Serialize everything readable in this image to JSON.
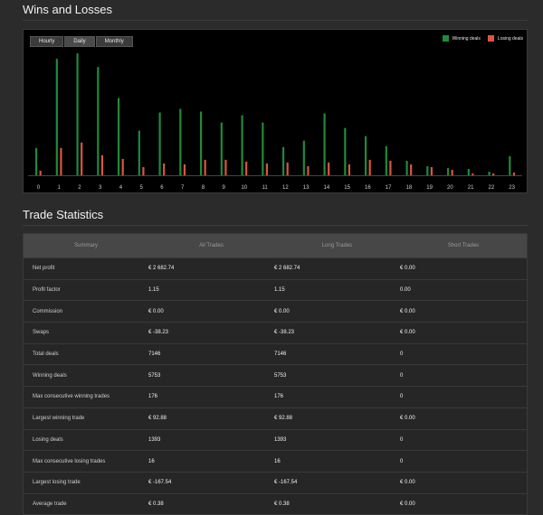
{
  "wins_losses": {
    "title": "Wins and Losses",
    "tabs": [
      "Hourly",
      "Daily",
      "Monthly"
    ],
    "legend": [
      {
        "label": "Winning deals",
        "color": "#1f8a3b"
      },
      {
        "label": "Losing deals",
        "color": "#d9563f"
      }
    ]
  },
  "chart_data": {
    "type": "bar",
    "categories": [
      "0",
      "1",
      "2",
      "3",
      "4",
      "5",
      "6",
      "7",
      "8",
      "9",
      "10",
      "11",
      "12",
      "13",
      "14",
      "15",
      "16",
      "17",
      "18",
      "19",
      "20",
      "21",
      "22",
      "23"
    ],
    "series": [
      {
        "name": "Winning deals",
        "color": "#1f8a3b",
        "values": [
          30,
          128,
          134,
          119,
          85,
          49,
          69,
          73,
          70,
          58,
          66,
          58,
          31,
          38,
          68,
          52,
          43,
          32,
          16,
          10,
          8,
          7,
          4,
          21
        ]
      },
      {
        "name": "Losing deals",
        "color": "#d9563f",
        "values": [
          5,
          30,
          36,
          22,
          18,
          9,
          13,
          12,
          17,
          17,
          15,
          13,
          14,
          10,
          14,
          12,
          17,
          16,
          12,
          9,
          6,
          2,
          2,
          3
        ]
      }
    ],
    "ylim": [
      0,
      140
    ]
  },
  "trade_stats": {
    "title": "Trade Statistics",
    "columns": [
      "Summary",
      "All Trades",
      "Long Trades",
      "Short Trades"
    ],
    "rows": [
      {
        "label": "Net profit",
        "all": "€ 2 682.74",
        "long": "€ 2 682.74",
        "short": "€ 0.00"
      },
      {
        "label": "Profit factor",
        "all": "1.15",
        "long": "1.15",
        "short": "0.00"
      },
      {
        "label": "Commission",
        "all": "€ 0.00",
        "long": "€ 0.00",
        "short": "€ 0.00"
      },
      {
        "label": "Swaps",
        "all": "€ -38.23",
        "long": "€ -38.23",
        "short": "€ 0.00"
      },
      {
        "label": "Total deals",
        "all": "7146",
        "long": "7146",
        "short": "0"
      },
      {
        "label": "Winning deals",
        "all": "5753",
        "long": "5753",
        "short": "0"
      },
      {
        "label": "Max consecutive winning trades",
        "all": "176",
        "long": "176",
        "short": "0"
      },
      {
        "label": "Largest winning trade",
        "all": "€ 92.88",
        "long": "€ 92.88",
        "short": "€ 0.00"
      },
      {
        "label": "Losing deals",
        "all": "1393",
        "long": "1393",
        "short": "0"
      },
      {
        "label": "Max consecutive losing trades",
        "all": "16",
        "long": "16",
        "short": "0"
      },
      {
        "label": "Largest losing trade",
        "all": "€ -167.54",
        "long": "€ -167.54",
        "short": "€ 0.00"
      },
      {
        "label": "Average trade",
        "all": "€ 0.38",
        "long": "€ 0.38",
        "short": "€ 0.00"
      }
    ]
  }
}
